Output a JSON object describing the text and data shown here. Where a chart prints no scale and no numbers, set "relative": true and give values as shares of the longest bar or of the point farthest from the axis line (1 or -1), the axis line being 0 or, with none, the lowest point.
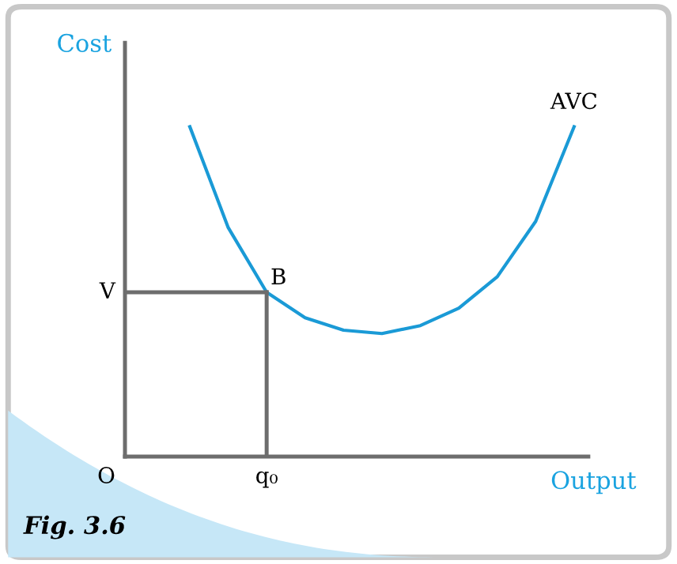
{
  "chart_data": {
    "type": "line",
    "relative": true,
    "title": "Fig. 3.6",
    "xlabel": "Output",
    "ylabel": "Cost",
    "categories": [
      null,
      null,
      null,
      null,
      null,
      null,
      null,
      null,
      null,
      null,
      null
    ],
    "series": [
      {
        "name": "AVC",
        "color": "#1a9ad6",
        "values": [
          1,
          0.694,
          0.498,
          0.421,
          0.383,
          0.373,
          0.397,
          0.45,
          0.545,
          0.713,
          1
        ]
      }
    ],
    "annotations": [
      "B",
      "O",
      "V",
      "q₀"
    ],
    "legend": false,
    "marker": "none",
    "line_style": "solid"
  }
}
